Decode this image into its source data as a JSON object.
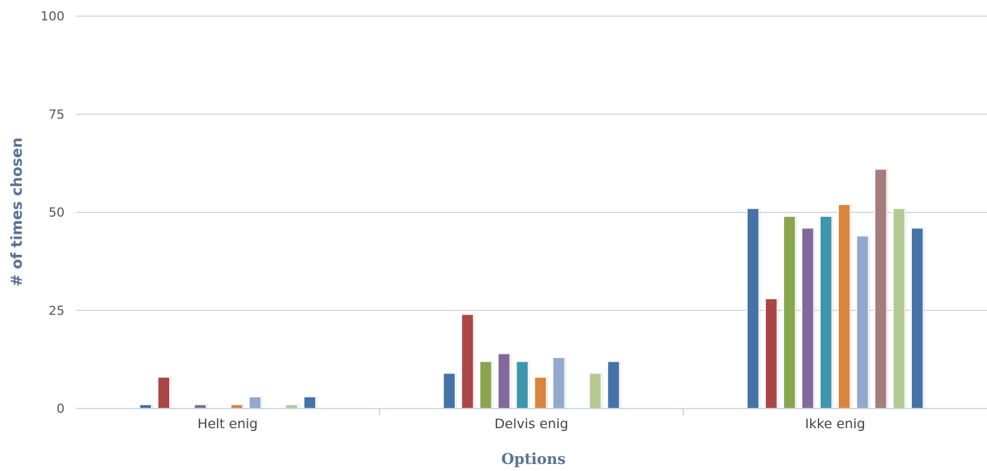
{
  "chart_data": {
    "type": "bar",
    "title": "",
    "xlabel": "Options",
    "ylabel": "# of times chosen",
    "categories": [
      "Helt enig",
      "Delvis enig",
      "Ikke enig"
    ],
    "ylim": [
      0,
      100
    ],
    "yticks": [
      0,
      25,
      50,
      75,
      100
    ],
    "grid": true,
    "legend": "none",
    "series": [
      {
        "color": "#4572a7",
        "values": [
          1,
          9,
          51
        ]
      },
      {
        "color": "#aa4643",
        "values": [
          8,
          24,
          28
        ]
      },
      {
        "color": "#89a54e",
        "values": [
          0,
          12,
          49
        ]
      },
      {
        "color": "#80699b",
        "values": [
          1,
          14,
          46
        ]
      },
      {
        "color": "#3d96ae",
        "values": [
          0,
          12,
          49
        ]
      },
      {
        "color": "#db843d",
        "values": [
          1,
          8,
          52
        ]
      },
      {
        "color": "#92a8cd",
        "values": [
          3,
          13,
          44
        ]
      },
      {
        "color": "#a47d7c",
        "values": [
          0,
          0,
          61
        ]
      },
      {
        "color": "#b5ca92",
        "values": [
          1,
          9,
          51
        ]
      },
      {
        "color": "#4572a7",
        "values": [
          3,
          12,
          46
        ]
      }
    ]
  }
}
